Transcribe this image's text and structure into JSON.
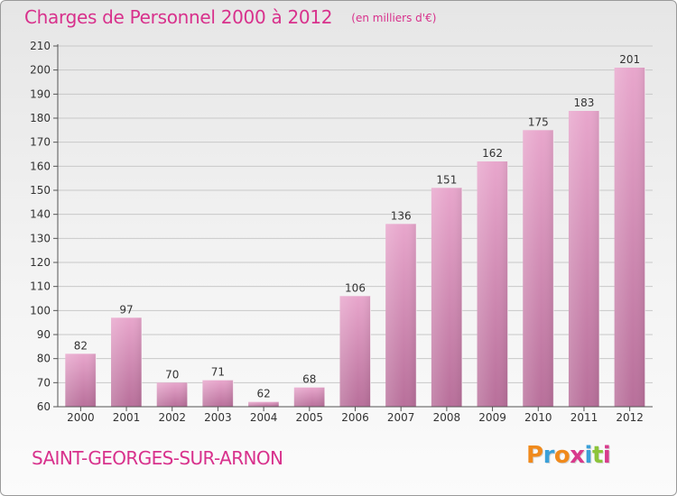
{
  "header": {
    "title": "Charges de Personnel 2000 à 2012",
    "subtitle": "(en milliers d'€)"
  },
  "footer": {
    "town": "SAINT-GEORGES-SUR-ARNON",
    "logo_text": "Proxiti",
    "logo_colors": [
      "#f08a1c",
      "#3aa0d8",
      "#f08a1c",
      "#d83a8c",
      "#3aa0d8",
      "#8cc43a",
      "#d83a8c"
    ]
  },
  "colors": {
    "accent": "#d8318c",
    "bar_top": "#e8a6cc",
    "bar_bottom": "#b86f9a",
    "axis": "#555555",
    "grid": "#c8c8c8"
  },
  "chart_data": {
    "type": "bar",
    "categories": [
      "2000",
      "2001",
      "2002",
      "2003",
      "2004",
      "2005",
      "2006",
      "2007",
      "2008",
      "2009",
      "2010",
      "2011",
      "2012"
    ],
    "values": [
      82,
      97,
      70,
      71,
      62,
      68,
      106,
      136,
      151,
      162,
      175,
      183,
      201
    ],
    "ylim": [
      60,
      210
    ],
    "yticks": [
      60,
      70,
      80,
      90,
      100,
      110,
      120,
      130,
      140,
      150,
      160,
      170,
      180,
      190,
      200,
      210
    ],
    "grid": true,
    "title": "Charges de Personnel 2000 à 2012",
    "xlabel": "",
    "ylabel": ""
  }
}
